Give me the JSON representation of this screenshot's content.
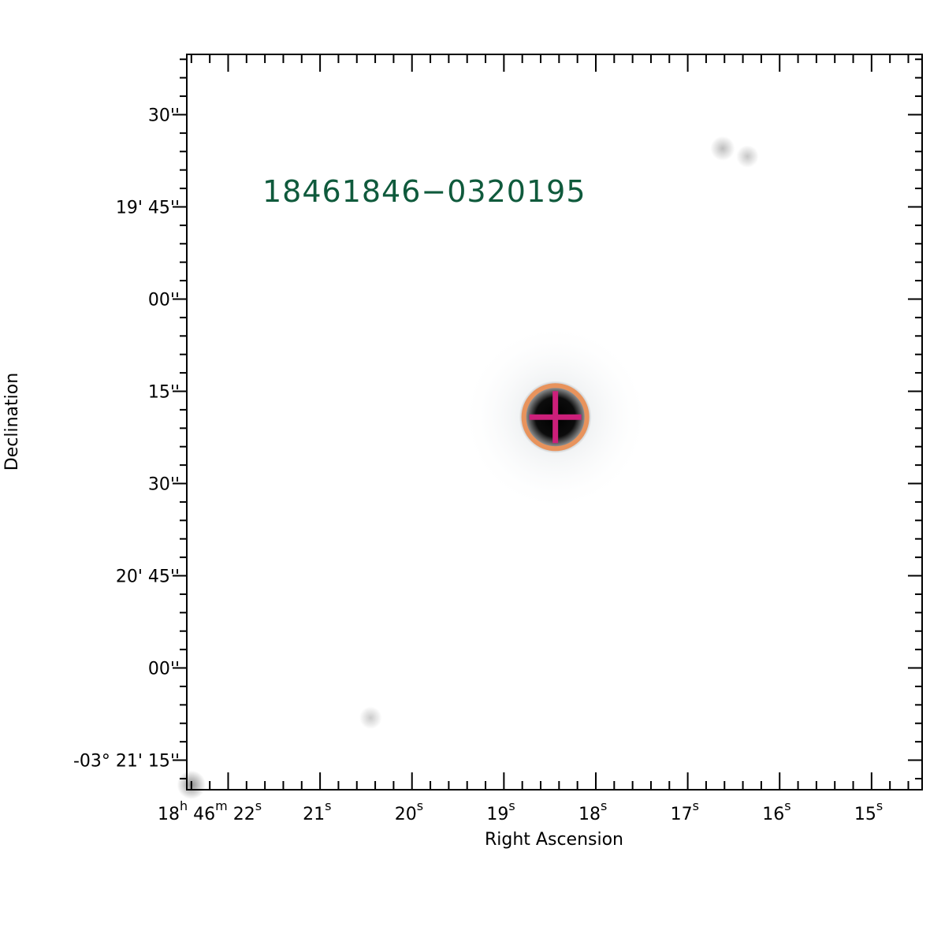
{
  "chart_data": {
    "type": "image",
    "source_label": "18461846−0320195",
    "xlabel": "Right Ascension",
    "ylabel": "Declination",
    "x_axis": {
      "unit": "RA (hms)",
      "ticks": [
        {
          "ra_s": 22.0,
          "parts": [
            {
              "t": "18"
            },
            {
              "t": "h",
              "sup": true
            },
            {
              "t": " 46"
            },
            {
              "t": "m",
              "sup": true
            },
            {
              "t": " 22"
            },
            {
              "t": "s",
              "sup": true
            }
          ]
        },
        {
          "ra_s": 21.0,
          "parts": [
            {
              "t": "21"
            },
            {
              "t": "s",
              "sup": true
            }
          ]
        },
        {
          "ra_s": 20.0,
          "parts": [
            {
              "t": "20"
            },
            {
              "t": "s",
              "sup": true
            }
          ]
        },
        {
          "ra_s": 19.0,
          "parts": [
            {
              "t": "19"
            },
            {
              "t": "s",
              "sup": true
            }
          ]
        },
        {
          "ra_s": 18.0,
          "parts": [
            {
              "t": "18"
            },
            {
              "t": "s",
              "sup": true
            }
          ]
        },
        {
          "ra_s": 17.0,
          "parts": [
            {
              "t": "17"
            },
            {
              "t": "s",
              "sup": true
            }
          ]
        },
        {
          "ra_s": 16.0,
          "parts": [
            {
              "t": "16"
            },
            {
              "t": "s",
              "sup": true
            }
          ]
        },
        {
          "ra_s": 15.0,
          "parts": [
            {
              "t": "15"
            },
            {
              "t": "s",
              "sup": true
            }
          ]
        }
      ],
      "minor_step_s": 0.2,
      "range_s": [
        22.45,
        14.45
      ]
    },
    "y_axis": {
      "unit": "Dec offset (arcsec from -03°19'00\")",
      "ticks": [
        {
          "offset": 30,
          "label": "30''"
        },
        {
          "offset": 45,
          "label": "19' 45''"
        },
        {
          "offset": 60,
          "label": "00''"
        },
        {
          "offset": 75,
          "label": "15''"
        },
        {
          "offset": 90,
          "label": "30''"
        },
        {
          "offset": 105,
          "label": "20' 45''"
        },
        {
          "offset": 120,
          "label": "00''"
        },
        {
          "offset": 135,
          "label": "-03° 21' 15''"
        }
      ],
      "minor_step": 3,
      "range": [
        20.2,
        139.8
      ]
    },
    "target": {
      "ra_s": 18.44,
      "dec_offset": 79.2
    },
    "marker": {
      "circle_color": "#e8935c",
      "cross_color": "#cc1f7a"
    },
    "sources": [
      {
        "ra_s": 18.44,
        "dec_offset": 79.2,
        "intensity": 1.0,
        "size": 1.0
      },
      {
        "ra_s": 16.62,
        "dec_offset": 35.5,
        "intensity": 0.35,
        "size": 0.6
      },
      {
        "ra_s": 16.35,
        "dec_offset": 36.8,
        "intensity": 0.3,
        "size": 0.55
      },
      {
        "ra_s": 20.45,
        "dec_offset": 128.1,
        "intensity": 0.28,
        "size": 0.55
      },
      {
        "ra_s": 22.4,
        "dec_offset": 139.0,
        "intensity": 0.6,
        "size": 0.7
      }
    ],
    "colors": {
      "label": "#0f5a3c",
      "frame": "#000000"
    }
  }
}
